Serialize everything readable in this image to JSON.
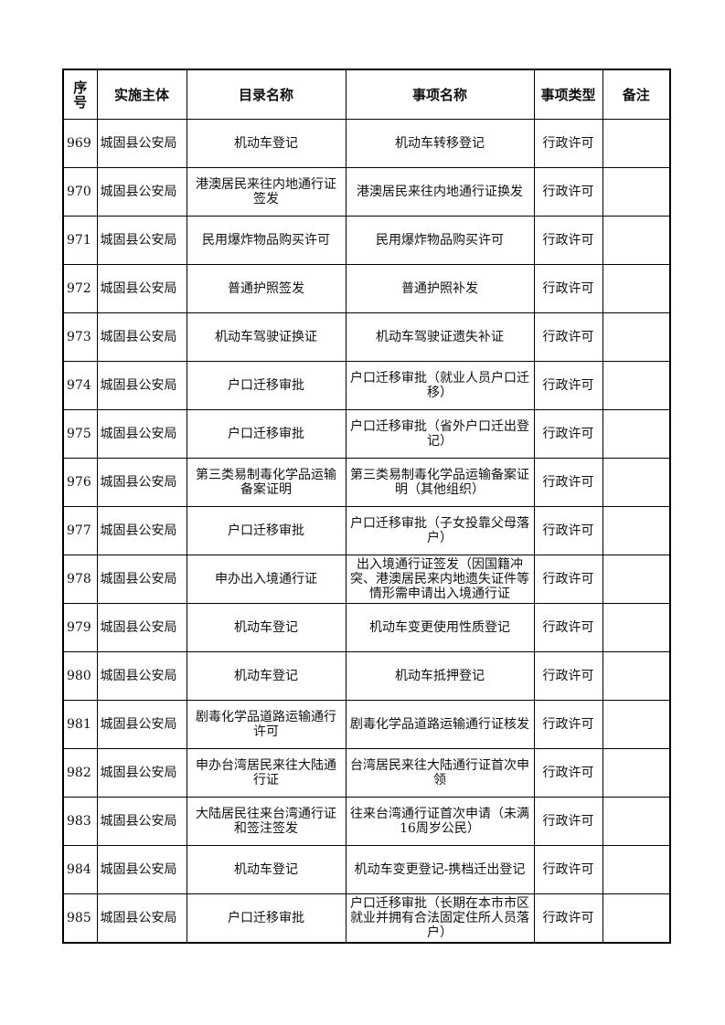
{
  "headers": [
    "序号",
    "实施主体",
    "目录名称",
    "事项名称",
    "事项类型",
    "备注"
  ],
  "rows": [
    {
      "no": "969",
      "org": "城固县公安局",
      "catalog": "机动车登记",
      "item": "机动车转移登记",
      "type": "行政许可",
      "note": ""
    },
    {
      "no": "970",
      "org": "城固县公安局",
      "catalog": "港澳居民来往内地通行证签发",
      "item": "港澳居民来往内地通行证换发",
      "type": "行政许可",
      "note": ""
    },
    {
      "no": "971",
      "org": "城固县公安局",
      "catalog": "民用爆炸物品购买许可",
      "item": "民用爆炸物品购买许可",
      "type": "行政许可",
      "note": ""
    },
    {
      "no": "972",
      "org": "城固县公安局",
      "catalog": "普通护照签发",
      "item": "普通护照补发",
      "type": "行政许可",
      "note": ""
    },
    {
      "no": "973",
      "org": "城固县公安局",
      "catalog": "机动车驾驶证换证",
      "item": "机动车驾驶证遗失补证",
      "type": "行政许可",
      "note": ""
    },
    {
      "no": "974",
      "org": "城固县公安局",
      "catalog": "户口迁移审批",
      "item": "户口迁移审批（就业人员户口迁移）",
      "type": "行政许可",
      "note": ""
    },
    {
      "no": "975",
      "org": "城固县公安局",
      "catalog": "户口迁移审批",
      "item": "户口迁移审批（省外户口迁出登记）",
      "type": "行政许可",
      "note": ""
    },
    {
      "no": "976",
      "org": "城固县公安局",
      "catalog": "第三类易制毒化学品运输备案证明",
      "item": "第三类易制毒化学品运输备案证明（其他组织）",
      "type": "行政许可",
      "note": ""
    },
    {
      "no": "977",
      "org": "城固县公安局",
      "catalog": "户口迁移审批",
      "item": "户口迁移审批（子女投靠父母落户）",
      "type": "行政许可",
      "note": ""
    },
    {
      "no": "978",
      "org": "城固县公安局",
      "catalog": "申办出入境通行证",
      "item": "出入境通行证签发（因国籍冲突、港澳居民来内地遗失证件等情形需申请出入境通行证",
      "type": "行政许可",
      "note": ""
    },
    {
      "no": "979",
      "org": "城固县公安局",
      "catalog": "机动车登记",
      "item": "机动车变更使用性质登记",
      "type": "行政许可",
      "note": ""
    },
    {
      "no": "980",
      "org": "城固县公安局",
      "catalog": "机动车登记",
      "item": "机动车抵押登记",
      "type": "行政许可",
      "note": ""
    },
    {
      "no": "981",
      "org": "城固县公安局",
      "catalog": "剧毒化学品道路运输通行许可",
      "item": "剧毒化学品道路运输通行证核发",
      "type": "行政许可",
      "note": ""
    },
    {
      "no": "982",
      "org": "城固县公安局",
      "catalog": "申办台湾居民来往大陆通行证",
      "item": "台湾居民来往大陆通行证首次申领",
      "type": "行政许可",
      "note": ""
    },
    {
      "no": "983",
      "org": "城固县公安局",
      "catalog": "大陆居民往来台湾通行证和签注签发",
      "item": "往来台湾通行证首次申请（未满16周岁公民）",
      "type": "行政许可",
      "note": ""
    },
    {
      "no": "984",
      "org": "城固县公安局",
      "catalog": "机动车登记",
      "item": "机动车变更登记-携档迁出登记",
      "type": "行政许可",
      "note": ""
    },
    {
      "no": "985",
      "org": "城固县公安局",
      "catalog": "户口迁移审批",
      "item": "户口迁移审批（长期在本市市区就业并拥有合法固定住所人员落户）",
      "type": "行政许可",
      "note": ""
    }
  ]
}
